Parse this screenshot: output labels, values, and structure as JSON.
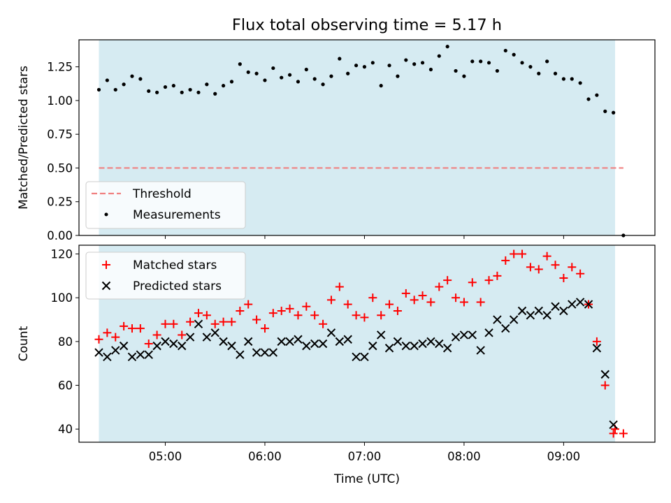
{
  "chart_data": [
    {
      "type": "scatter",
      "title": "Flux total observing time = 5.17 h",
      "ylabel": "Matched/Predicted stars",
      "xlabel": "",
      "ylim": [
        0,
        1.45
      ],
      "xlim": [
        "04:08",
        "09:55"
      ],
      "yticks": [
        "0.00",
        "0.25",
        "0.50",
        "0.75",
        "1.00",
        "1.25"
      ],
      "ytick_values": [
        0,
        0.25,
        0.5,
        0.75,
        1.0,
        1.25
      ],
      "shaded_span": [
        "04:20",
        "09:31"
      ],
      "shaded_color": "#add8e6",
      "legend_position": "lower left",
      "threshold": {
        "name": "Threshold",
        "value": 0.5,
        "x_range": [
          "04:20",
          "09:36"
        ],
        "color": "#f08080"
      },
      "series": [
        {
          "name": "Measurements",
          "color": "#000000",
          "marker": "dot",
          "x": [
            "04:20",
            "04:25",
            "04:30",
            "04:35",
            "04:40",
            "04:45",
            "04:50",
            "04:55",
            "05:00",
            "05:05",
            "05:10",
            "05:15",
            "05:20",
            "05:25",
            "05:30",
            "05:35",
            "05:40",
            "05:45",
            "05:50",
            "05:55",
            "06:00",
            "06:05",
            "06:10",
            "06:15",
            "06:20",
            "06:25",
            "06:30",
            "06:35",
            "06:40",
            "06:45",
            "06:50",
            "06:55",
            "07:00",
            "07:05",
            "07:10",
            "07:15",
            "07:20",
            "07:25",
            "07:30",
            "07:35",
            "07:40",
            "07:45",
            "07:50",
            "07:55",
            "08:00",
            "08:05",
            "08:10",
            "08:15",
            "08:20",
            "08:25",
            "08:30",
            "08:35",
            "08:40",
            "08:45",
            "08:50",
            "08:55",
            "09:00",
            "09:05",
            "09:10",
            "09:15",
            "09:20",
            "09:25",
            "09:30",
            "09:36"
          ],
          "y": [
            1.08,
            1.15,
            1.08,
            1.12,
            1.18,
            1.16,
            1.07,
            1.06,
            1.1,
            1.11,
            1.06,
            1.08,
            1.06,
            1.12,
            1.05,
            1.11,
            1.14,
            1.27,
            1.21,
            1.2,
            1.15,
            1.24,
            1.17,
            1.19,
            1.14,
            1.23,
            1.16,
            1.12,
            1.18,
            1.31,
            1.2,
            1.26,
            1.25,
            1.28,
            1.11,
            1.26,
            1.18,
            1.3,
            1.27,
            1.28,
            1.23,
            1.33,
            1.4,
            1.22,
            1.18,
            1.29,
            1.29,
            1.28,
            1.22,
            1.37,
            1.34,
            1.28,
            1.25,
            1.2,
            1.29,
            1.2,
            1.16,
            1.16,
            1.13,
            1.01,
            1.04,
            0.92,
            0.91,
            0.0
          ]
        }
      ]
    },
    {
      "type": "scatter",
      "title": "",
      "xlabel": "Time (UTC)",
      "ylabel": "Count",
      "ylim": [
        34,
        124
      ],
      "xlim": [
        "04:08",
        "09:55"
      ],
      "xticks": [
        "05:00",
        "06:00",
        "07:00",
        "08:00",
        "09:00"
      ],
      "yticks": [
        "40",
        "60",
        "80",
        "100",
        "120"
      ],
      "ytick_values": [
        40,
        60,
        80,
        100,
        120
      ],
      "shaded_span": [
        "04:20",
        "09:31"
      ],
      "shaded_color": "#add8e6",
      "legend_position": "top-left",
      "series": [
        {
          "name": "Matched stars",
          "color": "#ff0000",
          "marker": "plus",
          "x": [
            "04:20",
            "04:25",
            "04:30",
            "04:35",
            "04:40",
            "04:45",
            "04:50",
            "04:55",
            "05:00",
            "05:05",
            "05:10",
            "05:15",
            "05:20",
            "05:25",
            "05:30",
            "05:35",
            "05:40",
            "05:45",
            "05:50",
            "05:55",
            "06:00",
            "06:05",
            "06:10",
            "06:15",
            "06:20",
            "06:25",
            "06:30",
            "06:35",
            "06:40",
            "06:45",
            "06:50",
            "06:55",
            "07:00",
            "07:05",
            "07:10",
            "07:15",
            "07:20",
            "07:25",
            "07:30",
            "07:35",
            "07:40",
            "07:45",
            "07:50",
            "07:55",
            "08:00",
            "08:05",
            "08:10",
            "08:15",
            "08:20",
            "08:25",
            "08:30",
            "08:35",
            "08:40",
            "08:45",
            "08:50",
            "08:55",
            "09:00",
            "09:05",
            "09:10",
            "09:15",
            "09:20",
            "09:25",
            "09:30",
            "09:31",
            "09:36"
          ],
          "y": [
            81,
            84,
            82,
            87,
            86,
            86,
            79,
            83,
            88,
            88,
            83,
            89,
            93,
            92,
            88,
            89,
            89,
            94,
            97,
            90,
            86,
            93,
            94,
            95,
            92,
            96,
            92,
            88,
            99,
            105,
            97,
            92,
            91,
            100,
            92,
            97,
            94,
            102,
            99,
            101,
            98,
            105,
            108,
            100,
            98,
            107,
            98,
            108,
            110,
            117,
            120,
            120,
            114,
            113,
            119,
            115,
            109,
            114,
            111,
            97,
            80,
            60,
            38,
            40,
            38
          ]
        },
        {
          "name": "Predicted stars",
          "color": "#000000",
          "marker": "x",
          "x": [
            "04:20",
            "04:25",
            "04:30",
            "04:35",
            "04:40",
            "04:45",
            "04:50",
            "04:55",
            "05:00",
            "05:05",
            "05:10",
            "05:15",
            "05:20",
            "05:25",
            "05:30",
            "05:35",
            "05:40",
            "05:45",
            "05:50",
            "05:55",
            "06:00",
            "06:05",
            "06:10",
            "06:15",
            "06:20",
            "06:25",
            "06:30",
            "06:35",
            "06:40",
            "06:45",
            "06:50",
            "06:55",
            "07:00",
            "07:05",
            "07:10",
            "07:15",
            "07:20",
            "07:25",
            "07:30",
            "07:35",
            "07:40",
            "07:45",
            "07:50",
            "07:55",
            "08:00",
            "08:05",
            "08:10",
            "08:15",
            "08:20",
            "08:25",
            "08:30",
            "08:35",
            "08:40",
            "08:45",
            "08:50",
            "08:55",
            "09:00",
            "09:05",
            "09:10",
            "09:15",
            "09:20",
            "09:25",
            "09:30"
          ],
          "y": [
            75,
            73,
            76,
            78,
            73,
            74,
            74,
            78,
            80,
            79,
            78,
            82,
            88,
            82,
            84,
            80,
            78,
            74,
            80,
            75,
            75,
            75,
            80,
            80,
            81,
            78,
            79,
            79,
            84,
            80,
            81,
            73,
            73,
            78,
            83,
            77,
            80,
            78,
            78,
            79,
            80,
            79,
            77,
            82,
            83,
            83,
            76,
            84,
            90,
            86,
            90,
            94,
            92,
            94,
            92,
            96,
            94,
            97,
            98,
            97,
            77,
            65,
            42
          ]
        }
      ]
    }
  ]
}
